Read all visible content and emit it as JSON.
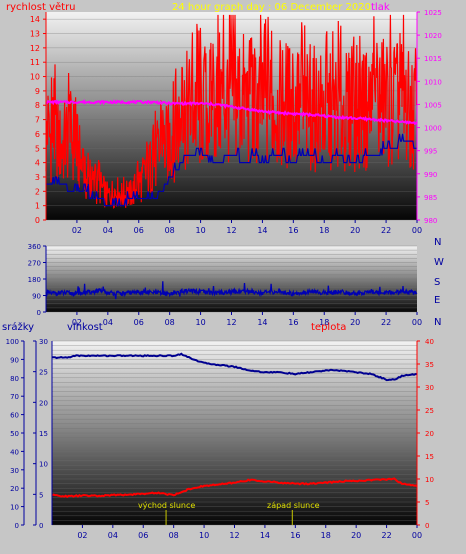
{
  "colors": {
    "background": "#c6c6c6",
    "wind": "#ff0000",
    "pressure": "#ff00ff",
    "wind_avg": "#0000b4",
    "direction": "#0000b4",
    "humidity": "#000090",
    "temperature": "#ff0000",
    "rain_axis": "#0000a0",
    "title": "#ffff00",
    "sun_label": "#e0e000"
  },
  "chart_data": [
    {
      "type": "line",
      "name": "wind-pressure",
      "title": "24 hour graph day : 06 December 2020",
      "ylabel_left": "rychlost větru",
      "ylabel_right": "tlak",
      "x_ticks": [
        "02",
        "04",
        "06",
        "08",
        "10",
        "12",
        "14",
        "16",
        "18",
        "20",
        "22",
        "00"
      ],
      "y_left_ticks": [
        "0",
        "1",
        "2",
        "3",
        "4",
        "5",
        "6",
        "7",
        "8",
        "9",
        "10",
        "11",
        "12",
        "13",
        "14"
      ],
      "y_right_ticks": [
        "980",
        "985",
        "990",
        "995",
        "1000",
        "1005",
        "1010",
        "1015",
        "1020",
        "1025"
      ],
      "xlim": [
        0,
        24
      ],
      "ylim_left": [
        0,
        14.5
      ],
      "ylim_right": [
        980,
        1025
      ],
      "grid": true,
      "series": [
        {
          "role": "wind-gust",
          "axis": "left",
          "x": [
            0,
            0.5,
            1,
            1.5,
            2,
            2.5,
            3,
            3.5,
            4,
            4.5,
            5,
            5.5,
            6,
            6.5,
            7,
            7.5,
            8,
            8.5,
            9,
            9.5,
            10,
            10.5,
            11,
            11.5,
            12,
            12.5,
            13,
            13.5,
            14,
            14.5,
            15,
            15.5,
            16,
            16.5,
            17,
            17.5,
            18,
            18.5,
            19,
            19.5,
            20,
            20.5,
            21,
            21.5,
            22,
            22.5,
            23,
            23.5,
            24
          ],
          "y": [
            6.5,
            7.5,
            6.0,
            7.2,
            6.0,
            3.5,
            3.0,
            2.8,
            2.0,
            2.5,
            2.0,
            2.2,
            3.0,
            4.0,
            5.0,
            6.0,
            6.5,
            8.0,
            9.0,
            9.5,
            9.0,
            9.5,
            10.0,
            10.5,
            10.0,
            10.5,
            10.0,
            9.5,
            10.0,
            9.5,
            9.5,
            10.0,
            9.0,
            9.5,
            9.0,
            9.5,
            9.0,
            9.0,
            9.5,
            9.0,
            9.5,
            9.0,
            9.5,
            10.0,
            10.0,
            9.5,
            10.0,
            9.0,
            8.5
          ]
        },
        {
          "role": "wind-average",
          "axis": "left",
          "x": [
            0,
            1,
            1.5,
            2.5,
            3,
            3.5,
            4,
            5,
            5.5,
            6,
            7,
            7.5,
            8,
            8.5,
            9,
            10,
            11,
            12,
            13,
            13.5,
            14,
            15,
            16,
            16.5,
            17,
            18,
            19,
            19.5,
            20,
            21,
            21.5,
            22,
            22.5,
            23,
            23.5,
            24
          ],
          "y": [
            2.5,
            2.5,
            2.0,
            2.0,
            1.5,
            1.5,
            1.0,
            1.0,
            1.5,
            1.5,
            1.5,
            2.0,
            3.0,
            3.5,
            4.5,
            4.5,
            4.0,
            4.5,
            4.0,
            4.5,
            4.0,
            4.5,
            4.0,
            4.5,
            4.5,
            4.0,
            4.5,
            4.0,
            4.0,
            4.5,
            4.5,
            5.0,
            5.0,
            5.5,
            5.5,
            5.0
          ]
        },
        {
          "role": "pressure",
          "axis": "right",
          "x": [
            0,
            2,
            4,
            6,
            7,
            8,
            9,
            10,
            11,
            12,
            13,
            14,
            15,
            16,
            17,
            18,
            19,
            20,
            21,
            22,
            23,
            24
          ],
          "y": [
            1005.5,
            1005.5,
            1005.5,
            1005.5,
            1005.5,
            1005.2,
            1005.2,
            1005.2,
            1005.0,
            1004.5,
            1004.0,
            1003.5,
            1003.2,
            1003.0,
            1002.8,
            1002.5,
            1002.2,
            1002.0,
            1001.8,
            1001.5,
            1001.2,
            1001.0
          ]
        }
      ]
    },
    {
      "type": "line",
      "name": "wind-direction",
      "x_ticks": [
        "02",
        "04",
        "06",
        "08",
        "10",
        "12",
        "14",
        "16",
        "18",
        "20",
        "22",
        "00"
      ],
      "y_ticks": [
        "0",
        "90",
        "180",
        "270",
        "360"
      ],
      "right_labels": [
        "N",
        "W",
        "S",
        "E",
        "N"
      ],
      "xlim": [
        0,
        24
      ],
      "ylim": [
        0,
        360
      ],
      "grid": true,
      "series": [
        {
          "role": "direction",
          "x": [
            0,
            1,
            2,
            3,
            3.5,
            4,
            5,
            6,
            7,
            8,
            9,
            10,
            11,
            12,
            13,
            14,
            15,
            16,
            17,
            18,
            19,
            20,
            21,
            22,
            23,
            24
          ],
          "y": [
            100,
            105,
            100,
            110,
            115,
            105,
            100,
            110,
            105,
            100,
            115,
            110,
            105,
            110,
            115,
            105,
            110,
            100,
            110,
            105,
            110,
            100,
            110,
            105,
            110,
            105
          ]
        }
      ]
    },
    {
      "type": "line",
      "name": "rain-humidity-temperature",
      "labels": {
        "rain": "srážky",
        "humidity": "vlhkost",
        "temperature": "teplota",
        "sunrise": "východ slunce",
        "sunset": "západ slunce"
      },
      "x_ticks": [
        "02",
        "04",
        "06",
        "08",
        "10",
        "12",
        "14",
        "16",
        "18",
        "20",
        "22",
        "00"
      ],
      "rain_ticks": [
        "0",
        "5",
        "10",
        "15",
        "20",
        "25",
        "30"
      ],
      "humidity_ticks": [
        "0",
        "10",
        "20",
        "30",
        "40",
        "50",
        "60",
        "70",
        "80",
        "90",
        "100"
      ],
      "temperature_ticks": [
        "0",
        "5",
        "10",
        "15",
        "20",
        "25",
        "30",
        "35",
        "40"
      ],
      "xlim": [
        0,
        24
      ],
      "ylim_humidity": [
        0,
        100
      ],
      "ylim_temperature": [
        0,
        40
      ],
      "grid": true,
      "sunrise_hour": 7.5,
      "sunset_hour": 15.8,
      "series": [
        {
          "role": "humidity",
          "axis": "humidity",
          "x": [
            0,
            1,
            1.5,
            3,
            4,
            5,
            6,
            7,
            8,
            8.5,
            9,
            10,
            11,
            12,
            13,
            14,
            15,
            16,
            17,
            18,
            19,
            20,
            21,
            22,
            22.5,
            23,
            24
          ],
          "y": [
            91,
            91,
            92,
            92,
            92,
            92,
            92,
            92,
            92,
            93,
            91,
            88,
            87,
            86,
            84,
            83,
            83,
            82,
            83,
            84,
            84,
            83,
            82,
            79,
            79,
            81,
            82
          ]
        },
        {
          "role": "temperature",
          "axis": "temperature",
          "x": [
            0,
            1,
            2,
            3,
            4,
            5,
            6,
            7,
            8,
            9,
            10,
            11,
            12,
            13,
            14,
            15,
            16,
            17,
            18,
            19,
            20,
            21,
            22,
            22.5,
            23,
            24
          ],
          "y": [
            6.5,
            6.2,
            6.4,
            6.3,
            6.5,
            6.6,
            6.8,
            7.0,
            6.5,
            7.8,
            8.5,
            8.8,
            9.2,
            9.8,
            9.5,
            9.2,
            9.0,
            9.0,
            9.2,
            9.5,
            9.6,
            9.8,
            9.9,
            10.0,
            9.0,
            8.5
          ]
        }
      ]
    }
  ]
}
